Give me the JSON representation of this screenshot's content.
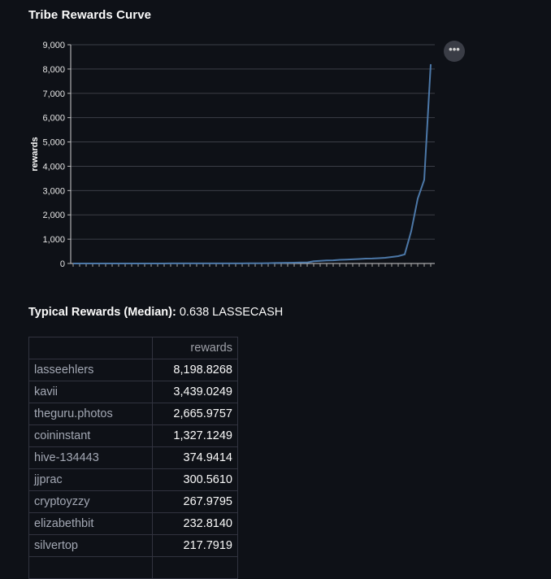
{
  "header": {
    "title": "Tribe Rewards Curve"
  },
  "chart_menu": {
    "label": "•••"
  },
  "chart_data": {
    "type": "line",
    "ylabel": "rewards",
    "xlabel": "",
    "ylim": [
      0,
      9000
    ],
    "y_ticks": [
      "0",
      "1,000",
      "2,000",
      "3,000",
      "4,000",
      "5,000",
      "6,000",
      "7,000",
      "8,000",
      "9,000"
    ],
    "grid": true,
    "series": [
      {
        "color": "#4c78a8",
        "values": [
          0,
          0,
          0,
          0,
          0,
          0,
          0,
          1,
          1,
          1,
          1,
          1,
          1,
          1,
          1,
          2,
          2,
          2,
          2,
          2,
          3,
          3,
          3,
          4,
          4,
          5,
          5,
          6,
          8,
          10,
          15,
          20,
          25,
          30,
          35,
          40,
          45,
          90,
          110,
          125,
          130,
          150,
          160,
          170,
          185,
          200,
          205,
          218,
          233,
          268,
          301,
          375,
          1327,
          2666,
          3439,
          8199
        ]
      }
    ]
  },
  "median": {
    "label": "Typical Rewards (Median):",
    "value": "0.638 LASSECASH"
  },
  "table": {
    "header": "rewards",
    "rows": [
      {
        "name": "lasseehlers",
        "rewards": "8,198.8268"
      },
      {
        "name": "kavii",
        "rewards": "3,439.0249"
      },
      {
        "name": "theguru.photos",
        "rewards": "2,665.9757"
      },
      {
        "name": "coininstant",
        "rewards": "1,327.1249"
      },
      {
        "name": "hive-134443",
        "rewards": "374.9414"
      },
      {
        "name": "jjprac",
        "rewards": "300.5610"
      },
      {
        "name": "cryptoyzzy",
        "rewards": "267.9795"
      },
      {
        "name": "elizabethbit",
        "rewards": "232.8140"
      },
      {
        "name": "silvertop",
        "rewards": "217.7919"
      },
      {
        "name": "",
        "rewards": ""
      }
    ]
  }
}
